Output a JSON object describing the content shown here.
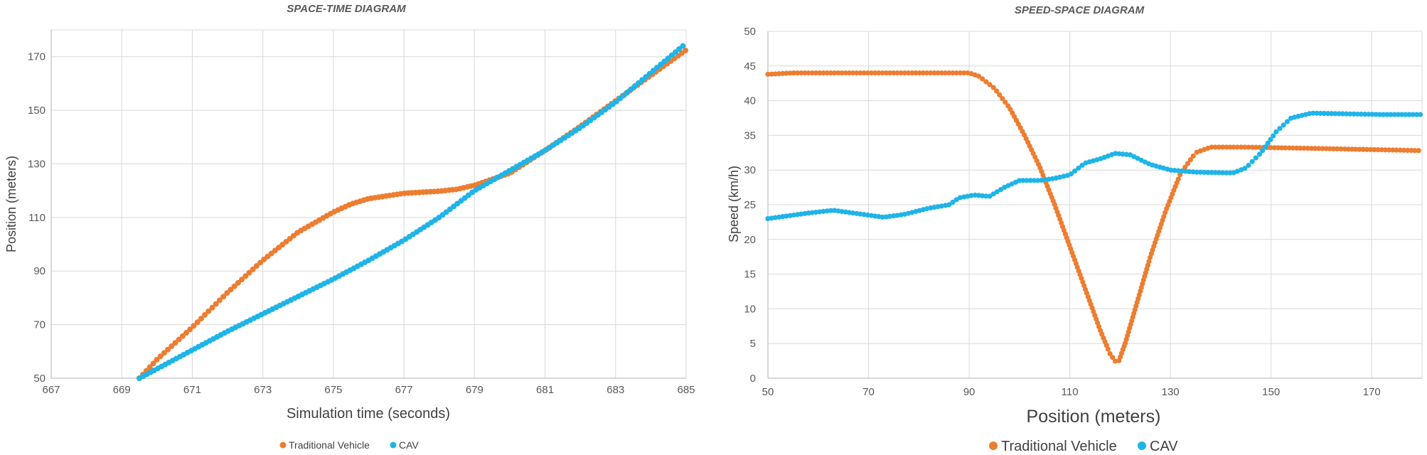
{
  "colors": {
    "traditional": "#ED7D31",
    "cav": "#1FB4E8"
  },
  "chart_data": [
    {
      "type": "scatter",
      "title": "SPACE-TIME DIAGRAM",
      "xlabel": "Simulation time (seconds)",
      "ylabel": "Position (meters)",
      "xlim": [
        667,
        685
      ],
      "ylim": [
        50,
        180
      ],
      "xticks": [
        "667",
        "669",
        "671",
        "673",
        "675",
        "677",
        "679",
        "681",
        "683",
        "685"
      ],
      "yticks": [
        "50",
        "70",
        "90",
        "110",
        "130",
        "150",
        "170"
      ],
      "grid": true,
      "legend": "bottom",
      "series": [
        {
          "name": "Traditional Vehicle",
          "color": "#ED7D31",
          "points": [
            [
              669.5,
              50
            ],
            [
              670,
              57
            ],
            [
              671,
              69
            ],
            [
              672,
              82
            ],
            [
              673,
              94
            ],
            [
              674,
              104.5
            ],
            [
              675,
              112
            ],
            [
              675.5,
              115
            ],
            [
              676,
              117
            ],
            [
              677,
              119
            ],
            [
              678,
              119.8
            ],
            [
              678.5,
              120.5
            ],
            [
              679,
              122
            ],
            [
              680,
              126.5
            ],
            [
              681,
              135
            ],
            [
              682,
              144
            ],
            [
              683,
              153.5
            ],
            [
              684,
              163
            ],
            [
              685,
              172.5
            ]
          ]
        },
        {
          "name": "CAV",
          "color": "#1FB4E8",
          "points": [
            [
              669.5,
              50
            ],
            [
              670,
              53.5
            ],
            [
              671,
              60.5
            ],
            [
              672,
              67.5
            ],
            [
              673,
              74
            ],
            [
              674,
              80.5
            ],
            [
              675,
              87
            ],
            [
              676,
              94
            ],
            [
              677,
              101.5
            ],
            [
              678,
              110
            ],
            [
              679,
              120
            ],
            [
              680,
              127.5
            ],
            [
              681,
              135
            ],
            [
              682,
              143.5
            ],
            [
              683,
              153
            ],
            [
              684,
              164
            ],
            [
              685,
              175
            ]
          ]
        }
      ]
    },
    {
      "type": "scatter",
      "title": "SPEED-SPACE DIAGRAM",
      "xlabel": "Position (meters)",
      "ylabel": "Speed (km/h)",
      "xlim": [
        50,
        180
      ],
      "ylim": [
        0,
        50
      ],
      "xticks": [
        "50",
        "70",
        "90",
        "110",
        "130",
        "150",
        "170"
      ],
      "yticks": [
        "0",
        "5",
        "10",
        "15",
        "20",
        "25",
        "30",
        "35",
        "40",
        "45",
        "50"
      ],
      "grid": true,
      "legend": "bottom",
      "series": [
        {
          "name": "Traditional Vehicle",
          "color": "#ED7D31",
          "points": [
            [
              50,
              43.8
            ],
            [
              55,
              44
            ],
            [
              90,
              44
            ],
            [
              92,
              43.5
            ],
            [
              95,
              41.8
            ],
            [
              98,
              39
            ],
            [
              101,
              35
            ],
            [
              104,
              30.5
            ],
            [
              107,
              25
            ],
            [
              110,
              19
            ],
            [
              113,
              13
            ],
            [
              116,
              7
            ],
            [
              118,
              3.5
            ],
            [
              119.5,
              2
            ],
            [
              121,
              5
            ],
            [
              123,
              10
            ],
            [
              126,
              17.5
            ],
            [
              129,
              24
            ],
            [
              132,
              29.5
            ],
            [
              135,
              32.5
            ],
            [
              138,
              33.3
            ],
            [
              145,
              33.3
            ],
            [
              160,
              33.1
            ],
            [
              180,
              32.8
            ]
          ]
        },
        {
          "name": "CAV",
          "color": "#1FB4E8",
          "points": [
            [
              50,
              23
            ],
            [
              54,
              23.4
            ],
            [
              58,
              23.8
            ],
            [
              63,
              24.2
            ],
            [
              68,
              23.7
            ],
            [
              73,
              23.2
            ],
            [
              77,
              23.6
            ],
            [
              82,
              24.5
            ],
            [
              86,
              25
            ],
            [
              88,
              26
            ],
            [
              91,
              26.4
            ],
            [
              94,
              26.2
            ],
            [
              97,
              27.5
            ],
            [
              100,
              28.5
            ],
            [
              104,
              28.5
            ],
            [
              107,
              28.8
            ],
            [
              110,
              29.3
            ],
            [
              113,
              31
            ],
            [
              116,
              31.6
            ],
            [
              119,
              32.4
            ],
            [
              122,
              32.2
            ],
            [
              126,
              30.8
            ],
            [
              130,
              30
            ],
            [
              135,
              29.7
            ],
            [
              141,
              29.6
            ],
            [
              142.5,
              29.6
            ],
            [
              145,
              30.3
            ],
            [
              148,
              32.5
            ],
            [
              151,
              35.5
            ],
            [
              154,
              37.5
            ],
            [
              158,
              38.2
            ],
            [
              165,
              38.1
            ],
            [
              172,
              38
            ],
            [
              180,
              38
            ]
          ]
        }
      ]
    }
  ]
}
